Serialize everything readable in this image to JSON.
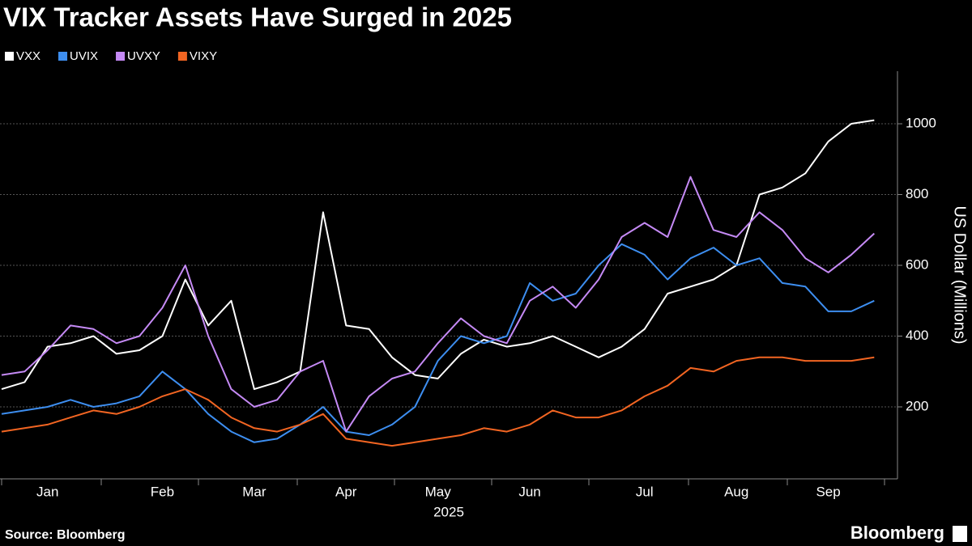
{
  "chart_data": {
    "type": "line",
    "title": "VIX Tracker Assets Have Surged in 2025",
    "ylabel": "US Dollar (Millions)",
    "xlabel": "2025",
    "source": "Source: Bloomberg",
    "brand": "Bloomberg",
    "categories": [
      null,
      null,
      "Jan",
      null,
      null,
      null,
      null,
      "Feb",
      null,
      null,
      null,
      "Mar",
      null,
      null,
      null,
      "Apr",
      null,
      null,
      null,
      "May",
      null,
      null,
      null,
      "Jun",
      null,
      null,
      null,
      null,
      "Jul",
      null,
      null,
      null,
      "Aug",
      null,
      null,
      null,
      "Sep",
      null,
      null
    ],
    "series": [
      {
        "name": "VXX",
        "color": "#ffffff",
        "values": [
          250,
          270,
          370,
          380,
          400,
          350,
          360,
          400,
          560,
          430,
          500,
          250,
          270,
          300,
          750,
          430,
          420,
          340,
          290,
          280,
          350,
          390,
          370,
          380,
          400,
          370,
          340,
          370,
          420,
          520,
          540,
          560,
          600,
          800,
          820,
          860,
          950,
          1000,
          1010
        ]
      },
      {
        "name": "UVIX",
        "color": "#3d8ef0",
        "values": [
          180,
          190,
          200,
          220,
          200,
          210,
          230,
          300,
          250,
          180,
          130,
          100,
          110,
          150,
          200,
          130,
          120,
          150,
          200,
          330,
          400,
          380,
          400,
          550,
          500,
          520,
          600,
          660,
          630,
          560,
          620,
          650,
          600,
          620,
          550,
          540,
          470,
          470,
          500
        ]
      },
      {
        "name": "UVXY",
        "color": "#c58af5",
        "values": [
          290,
          300,
          360,
          430,
          420,
          380,
          400,
          480,
          600,
          400,
          250,
          200,
          220,
          300,
          330,
          130,
          230,
          280,
          300,
          380,
          450,
          400,
          380,
          500,
          540,
          480,
          560,
          680,
          720,
          680,
          850,
          700,
          680,
          750,
          700,
          620,
          580,
          630,
          690
        ]
      },
      {
        "name": "VIXY",
        "color": "#f26522",
        "values": [
          130,
          140,
          150,
          170,
          190,
          180,
          200,
          230,
          250,
          220,
          170,
          140,
          130,
          150,
          180,
          110,
          100,
          90,
          100,
          110,
          120,
          140,
          130,
          150,
          190,
          170,
          170,
          190,
          230,
          260,
          310,
          300,
          330,
          340,
          340,
          330,
          330,
          330,
          340
        ]
      }
    ],
    "ylim": [
      0,
      1150
    ],
    "yticks": [
      200,
      400,
      600,
      800,
      1000
    ],
    "grid": true
  }
}
